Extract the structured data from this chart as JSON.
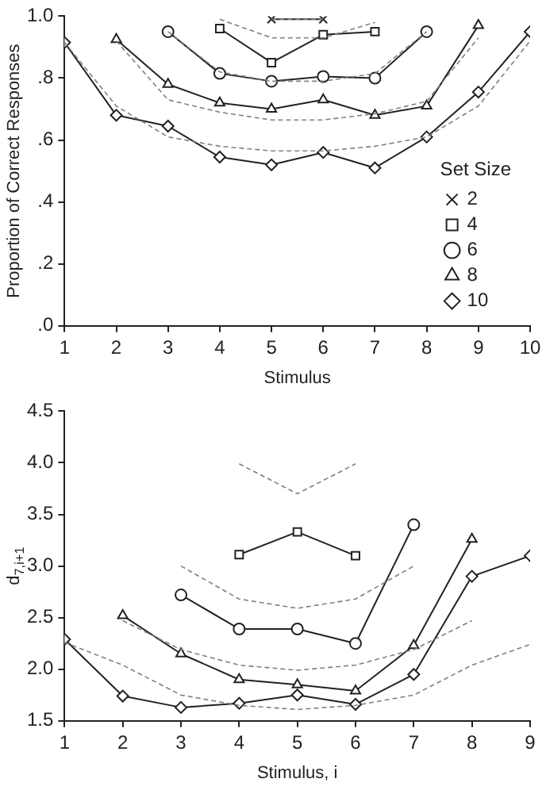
{
  "chart_data": [
    {
      "type": "line",
      "xlabel": "Stimulus",
      "ylabel": "Proportion of Correct Responses",
      "legend_title": "Set Size",
      "legend": "bottom right",
      "grid": false,
      "x": [
        1,
        2,
        3,
        4,
        5,
        6,
        7,
        8,
        9,
        10
      ],
      "xlim": [
        1,
        10
      ],
      "xticks": [
        1,
        2,
        3,
        4,
        5,
        6,
        7,
        8,
        9,
        10
      ],
      "ylim": [
        0,
        1
      ],
      "yticks": [
        {
          "value": 0,
          "label": ".0"
        },
        {
          "value": 0.2,
          "label": ".2"
        },
        {
          "value": 0.4,
          "label": ".4"
        },
        {
          "value": 0.6,
          "label": ".6"
        },
        {
          "value": 0.8,
          "label": ".8"
        },
        {
          "value": 1,
          "label": "1.0"
        }
      ],
      "series": [
        {
          "name": "2",
          "color": "#222222",
          "marker": "cross",
          "line_style": "solid",
          "values": [
            null,
            null,
            null,
            null,
            0.99,
            0.99,
            null,
            null,
            null,
            null
          ]
        },
        {
          "name": "4",
          "color": "#222222",
          "marker": "square",
          "line_style": "solid",
          "values": [
            null,
            null,
            null,
            0.96,
            0.85,
            0.94,
            0.95,
            null,
            null,
            null
          ]
        },
        {
          "name": "6",
          "color": "#222222",
          "marker": "circle",
          "line_style": "solid",
          "values": [
            null,
            null,
            0.95,
            0.815,
            0.79,
            0.805,
            0.8,
            0.95,
            null,
            null
          ]
        },
        {
          "name": "8",
          "color": "#222222",
          "marker": "triangle",
          "line_style": "solid",
          "values": [
            null,
            0.925,
            0.78,
            0.72,
            0.7,
            0.73,
            0.68,
            0.71,
            0.97,
            null
          ]
        },
        {
          "name": "10",
          "color": "#222222",
          "marker": "diamond",
          "line_style": "solid",
          "values": [
            0.915,
            0.68,
            0.645,
            0.545,
            0.52,
            0.56,
            0.51,
            0.61,
            0.755,
            0.95
          ]
        },
        {
          "color": "#808080",
          "marker": "none",
          "line_style": "dashed",
          "values": [
            null,
            null,
            null,
            null,
            0.99,
            0.99,
            null,
            null,
            null,
            null
          ]
        },
        {
          "color": "#808080",
          "marker": "none",
          "line_style": "dashed",
          "values": [
            null,
            null,
            null,
            0.99,
            0.93,
            0.93,
            0.98,
            null,
            null,
            null
          ]
        },
        {
          "color": "#808080",
          "marker": "none",
          "line_style": "dashed",
          "values": [
            null,
            null,
            0.95,
            0.82,
            0.79,
            0.79,
            0.815,
            0.95,
            null,
            null
          ]
        },
        {
          "color": "#808080",
          "marker": "none",
          "line_style": "dashed",
          "values": [
            null,
            0.92,
            0.73,
            0.69,
            0.665,
            0.665,
            0.685,
            0.725,
            0.93,
            null
          ]
        },
        {
          "color": "#808080",
          "marker": "none",
          "line_style": "dashed",
          "values": [
            0.915,
            0.71,
            0.61,
            0.58,
            0.565,
            0.565,
            0.58,
            0.61,
            0.71,
            0.92
          ]
        }
      ]
    },
    {
      "type": "line",
      "xlabel": "Stimulus, i",
      "ylabel": "d$_{7,i+1}$",
      "grid": false,
      "x": [
        1,
        2,
        3,
        4,
        5,
        6,
        7,
        8,
        9
      ],
      "xlim": [
        1,
        9
      ],
      "xticks": [
        1,
        2,
        3,
        4,
        5,
        6,
        7,
        8,
        9
      ],
      "ylim": [
        1.5,
        4.5
      ],
      "yticks": [
        {
          "value": 1.5,
          "label": "1.5"
        },
        {
          "value": 2,
          "label": "2.0"
        },
        {
          "value": 2.5,
          "label": "2.5"
        },
        {
          "value": 3,
          "label": "3.0"
        },
        {
          "value": 3.5,
          "label": "3.5"
        },
        {
          "value": 4,
          "label": "4.0"
        },
        {
          "value": 4.5,
          "label": "4.5"
        }
      ],
      "series": [
        {
          "color": "#222222",
          "marker": "square",
          "line_style": "solid",
          "values": [
            null,
            null,
            null,
            3.11,
            3.33,
            3.1,
            null,
            null,
            null
          ]
        },
        {
          "color": "#222222",
          "marker": "circle",
          "line_style": "solid",
          "values": [
            null,
            null,
            2.72,
            2.39,
            2.39,
            2.25,
            3.4,
            null,
            null
          ]
        },
        {
          "color": "#222222",
          "marker": "triangle",
          "line_style": "solid",
          "values": [
            null,
            2.52,
            2.15,
            1.9,
            1.85,
            1.79,
            2.23,
            3.26,
            null
          ]
        },
        {
          "color": "#222222",
          "marker": "diamond",
          "line_style": "solid",
          "values": [
            2.29,
            1.74,
            1.63,
            1.67,
            1.75,
            1.66,
            1.95,
            2.9,
            3.1
          ]
        },
        {
          "color": "#808080",
          "marker": "none",
          "line_style": "dashed",
          "values": [
            null,
            null,
            null,
            3.99,
            3.7,
            3.99,
            null,
            null,
            null
          ]
        },
        {
          "color": "#808080",
          "marker": "none",
          "line_style": "dashed",
          "values": [
            null,
            null,
            3.0,
            2.68,
            2.59,
            2.68,
            3.0,
            null,
            null
          ]
        },
        {
          "color": "#808080",
          "marker": "none",
          "line_style": "dashed",
          "values": [
            null,
            2.47,
            2.19,
            2.04,
            1.99,
            2.04,
            2.19,
            2.47,
            null
          ]
        },
        {
          "color": "#808080",
          "marker": "none",
          "line_style": "dashed",
          "values": [
            2.26,
            2.04,
            1.75,
            1.65,
            1.61,
            1.65,
            1.75,
            2.04,
            2.24
          ]
        }
      ]
    }
  ]
}
